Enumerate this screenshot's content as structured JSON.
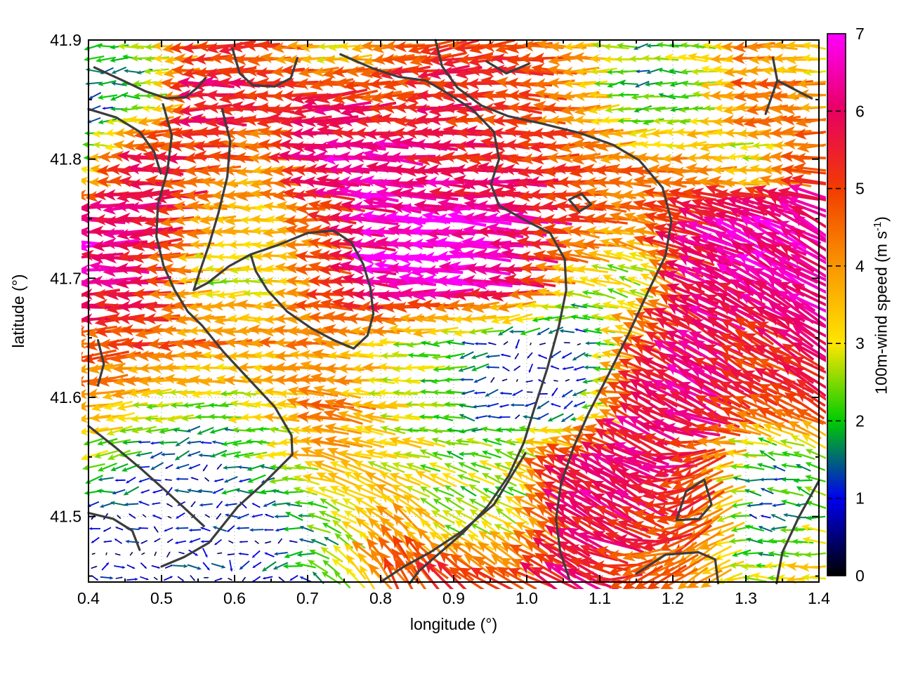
{
  "chart_data": {
    "type": "quiver",
    "xlabel": "longitude (°)",
    "ylabel": "latitude (°)",
    "xlim": [
      0.4,
      1.4
    ],
    "ylim": [
      41.445,
      41.9
    ],
    "xticks": [
      0.4,
      0.5,
      0.6,
      0.7,
      0.8,
      0.9,
      1.0,
      1.1,
      1.2,
      1.3,
      1.4
    ],
    "xticks_minor": [
      0.45,
      0.55,
      0.65,
      0.75,
      0.85,
      0.95,
      1.05,
      1.15,
      1.25,
      1.35
    ],
    "yticks": [
      41.5,
      41.6,
      41.7,
      41.8,
      41.9
    ],
    "yticks_minor": [
      41.45,
      41.55,
      41.65,
      41.75,
      41.85
    ],
    "grid": "dotted",
    "grid_color": "#9a9a9a",
    "frame_color": "#000000",
    "contour_color": "#3c3c3c",
    "colorbar": {
      "label_text": "100m-wind speed (m s",
      "label_sup": "-1",
      "label_close": ")",
      "min": 0,
      "max": 7,
      "ticks": [
        0,
        1,
        2,
        3,
        4,
        5,
        6,
        7
      ],
      "palette_stops": [
        [
          0,
          "#000000"
        ],
        [
          1,
          "#0000f0"
        ],
        [
          2,
          "#00cc00"
        ],
        [
          3,
          "#ffe600"
        ],
        [
          4,
          "#fa9600"
        ],
        [
          5,
          "#f23c00"
        ],
        [
          6,
          "#e80060"
        ],
        [
          7,
          "#ff00ff"
        ]
      ]
    },
    "field": {
      "comment": "coarse control grid of the wind field; cols span lon 0.4-1.4, rows span lat 41.9 (top) to 41.445 (bottom); dir in degrees CCW from east (180 = blowing toward west)",
      "ncols": 13,
      "nrows": 10,
      "arrow_spacing_deg": {
        "lon": 0.01704,
        "lat": 0.01039
      },
      "speed": [
        [
          2.0,
          2.5,
          5.0,
          5.0,
          2.2,
          4.6,
          5.2,
          5.4,
          4.0,
          2.0,
          2.6,
          4.0,
          3.0
        ],
        [
          1.0,
          2.2,
          6.0,
          5.4,
          6.0,
          5.0,
          5.5,
          5.0,
          4.2,
          1.6,
          2.2,
          4.8,
          4.0
        ],
        [
          2.2,
          6.0,
          5.0,
          4.0,
          6.5,
          6.5,
          5.5,
          5.5,
          5.0,
          4.2,
          4.0,
          2.6,
          5.0
        ],
        [
          6.5,
          5.8,
          4.0,
          3.2,
          5.0,
          6.8,
          6.8,
          6.5,
          5.2,
          4.0,
          6.0,
          6.5,
          6.5
        ],
        [
          6.5,
          6.0,
          2.6,
          3.0,
          5.0,
          7.0,
          7.0,
          6.5,
          3.2,
          2.2,
          6.2,
          6.5,
          6.5
        ],
        [
          4.6,
          5.0,
          4.2,
          4.0,
          4.2,
          3.0,
          2.0,
          0.8,
          0.7,
          4.5,
          6.2,
          5.2,
          6.0
        ],
        [
          4.2,
          3.0,
          2.5,
          3.2,
          4.5,
          3.0,
          2.0,
          0.6,
          0.7,
          5.5,
          6.5,
          5.0,
          5.5
        ],
        [
          2.5,
          1.2,
          1.0,
          2.2,
          4.0,
          3.0,
          2.5,
          2.8,
          6.0,
          6.5,
          5.0,
          1.5,
          2.0
        ],
        [
          0.8,
          0.8,
          1.0,
          1.0,
          2.2,
          4.0,
          2.5,
          2.8,
          6.0,
          5.5,
          4.8,
          1.2,
          2.5
        ],
        [
          0.6,
          0.7,
          0.8,
          1.0,
          2.5,
          5.0,
          5.5,
          5.0,
          6.0,
          4.5,
          4.0,
          2.5,
          3.5
        ]
      ],
      "dir": [
        [
          180,
          180,
          185,
          180,
          180,
          185,
          190,
          185,
          180,
          180,
          170,
          180,
          175
        ],
        [
          200,
          185,
          180,
          180,
          185,
          185,
          180,
          175,
          180,
          190,
          180,
          185,
          180
        ],
        [
          175,
          180,
          180,
          180,
          180,
          175,
          180,
          180,
          185,
          180,
          185,
          180,
          185
        ],
        [
          180,
          185,
          180,
          180,
          175,
          175,
          178,
          180,
          175,
          170,
          160,
          155,
          150
        ],
        [
          180,
          180,
          185,
          180,
          175,
          178,
          180,
          178,
          170,
          160,
          155,
          150,
          150
        ],
        [
          185,
          185,
          180,
          180,
          178,
          180,
          185,
          200,
          190,
          158,
          152,
          150,
          150
        ],
        [
          190,
          185,
          180,
          175,
          170,
          175,
          180,
          200,
          210,
          150,
          150,
          155,
          150
        ],
        [
          195,
          200,
          190,
          185,
          160,
          165,
          160,
          155,
          150,
          150,
          210,
          170,
          160
        ],
        [
          190,
          170,
          180,
          190,
          150,
          135,
          150,
          150,
          150,
          150,
          215,
          180,
          170
        ],
        [
          10,
          0,
          350,
          200,
          140,
          120,
          140,
          150,
          150,
          210,
          220,
          170,
          185
        ]
      ]
    },
    "contours": [
      [
        [
          0.408,
          41.877
        ],
        [
          0.447,
          41.866
        ],
        [
          0.478,
          41.857
        ],
        [
          0.507,
          41.851
        ],
        [
          0.533,
          41.852
        ],
        [
          0.549,
          41.86
        ],
        [
          0.56,
          41.868
        ]
      ],
      [
        [
          0.4,
          41.842
        ],
        [
          0.438,
          41.835
        ],
        [
          0.47,
          41.823
        ],
        [
          0.49,
          41.806
        ],
        [
          0.499,
          41.788
        ]
      ],
      [
        [
          0.502,
          41.846
        ],
        [
          0.514,
          41.82
        ],
        [
          0.508,
          41.79
        ],
        [
          0.495,
          41.762
        ],
        [
          0.493,
          41.735
        ],
        [
          0.503,
          41.71
        ],
        [
          0.518,
          41.69
        ],
        [
          0.536,
          41.672
        ],
        [
          0.556,
          41.66
        ],
        [
          0.585,
          41.638
        ],
        [
          0.62,
          41.615
        ],
        [
          0.655,
          41.592
        ],
        [
          0.678,
          41.568
        ],
        [
          0.679,
          41.552
        ],
        [
          0.64,
          41.528
        ],
        [
          0.604,
          41.508
        ],
        [
          0.565,
          41.478
        ],
        [
          0.531,
          41.466
        ],
        [
          0.5,
          41.458
        ]
      ],
      [
        [
          0.583,
          41.842
        ],
        [
          0.594,
          41.815
        ],
        [
          0.59,
          41.785
        ],
        [
          0.578,
          41.755
        ],
        [
          0.565,
          41.728
        ],
        [
          0.552,
          41.705
        ],
        [
          0.544,
          41.69
        ],
        [
          0.563,
          41.696
        ],
        [
          0.592,
          41.71
        ],
        [
          0.622,
          41.72
        ]
      ],
      [
        [
          0.622,
          41.72
        ],
        [
          0.66,
          41.728
        ],
        [
          0.7,
          41.738
        ],
        [
          0.736,
          41.74
        ],
        [
          0.76,
          41.73
        ],
        [
          0.776,
          41.712
        ],
        [
          0.786,
          41.692
        ],
        [
          0.79,
          41.67
        ],
        [
          0.782,
          41.652
        ],
        [
          0.763,
          41.641
        ],
        [
          0.736,
          41.648
        ],
        [
          0.705,
          41.658
        ],
        [
          0.672,
          41.672
        ],
        [
          0.645,
          41.69
        ],
        [
          0.629,
          41.706
        ],
        [
          0.622,
          41.72
        ]
      ],
      [
        [
          0.597,
          41.893
        ],
        [
          0.607,
          41.872
        ],
        [
          0.625,
          41.862
        ],
        [
          0.655,
          41.861
        ],
        [
          0.677,
          41.868
        ],
        [
          0.686,
          41.885
        ]
      ],
      [
        [
          0.945,
          41.882
        ],
        [
          0.972,
          41.872
        ],
        [
          1.003,
          41.88
        ]
      ],
      [
        [
          0.745,
          41.888
        ],
        [
          0.79,
          41.876
        ],
        [
          0.825,
          41.869
        ],
        [
          0.862,
          41.866
        ],
        [
          0.887,
          41.857
        ],
        [
          0.925,
          41.842
        ],
        [
          0.955,
          41.823
        ],
        [
          0.962,
          41.8
        ],
        [
          0.951,
          41.779
        ],
        [
          0.962,
          41.761
        ],
        [
          1.0,
          41.748
        ],
        [
          1.032,
          41.738
        ],
        [
          1.052,
          41.716
        ],
        [
          1.054,
          41.69
        ],
        [
          1.044,
          41.66
        ],
        [
          1.028,
          41.624
        ],
        [
          1.01,
          41.59
        ],
        [
          0.996,
          41.562
        ],
        [
          0.975,
          41.534
        ],
        [
          0.947,
          41.509
        ],
        [
          0.914,
          41.487
        ],
        [
          0.88,
          41.469
        ],
        [
          0.852,
          41.454
        ],
        [
          0.84,
          41.444
        ]
      ],
      [
        [
          0.875,
          41.9
        ],
        [
          0.884,
          41.878
        ],
        [
          0.905,
          41.86
        ],
        [
          0.938,
          41.845
        ],
        [
          0.975,
          41.836
        ],
        [
          1.02,
          41.83
        ],
        [
          1.072,
          41.822
        ],
        [
          1.118,
          41.812
        ],
        [
          1.154,
          41.799
        ],
        [
          1.186,
          41.776
        ],
        [
          1.198,
          41.748
        ],
        [
          1.19,
          41.719
        ],
        [
          1.167,
          41.69
        ],
        [
          1.14,
          41.654
        ],
        [
          1.111,
          41.618
        ],
        [
          1.084,
          41.586
        ],
        [
          1.064,
          41.558
        ],
        [
          1.047,
          41.528
        ],
        [
          1.04,
          41.498
        ],
        [
          1.046,
          41.47
        ],
        [
          1.058,
          41.448
        ]
      ],
      [
        [
          1.337,
          41.885
        ],
        [
          1.343,
          41.866
        ],
        [
          1.39,
          41.851
        ]
      ],
      [
        [
          1.343,
          41.866
        ],
        [
          1.327,
          41.838
        ]
      ],
      [
        [
          1.218,
          41.521
        ],
        [
          1.243,
          41.531
        ],
        [
          1.253,
          41.51
        ],
        [
          1.236,
          41.498
        ],
        [
          1.205,
          41.497
        ],
        [
          1.218,
          41.521
        ]
      ],
      [
        [
          1.15,
          41.452
        ],
        [
          1.19,
          41.468
        ],
        [
          1.235,
          41.47
        ],
        [
          1.258,
          41.464
        ],
        [
          1.262,
          41.444
        ]
      ],
      [
        [
          1.4,
          41.53
        ],
        [
          1.372,
          41.499
        ],
        [
          1.35,
          41.47
        ],
        [
          1.342,
          41.444
        ]
      ],
      [
        [
          0.998,
          41.553
        ],
        [
          0.955,
          41.51
        ],
        [
          0.91,
          41.487
        ],
        [
          0.868,
          41.47
        ],
        [
          0.832,
          41.458
        ],
        [
          0.8,
          41.445
        ]
      ],
      [
        [
          0.4,
          41.576
        ],
        [
          0.437,
          41.558
        ],
        [
          0.472,
          41.54
        ],
        [
          0.505,
          41.522
        ],
        [
          0.535,
          41.505
        ],
        [
          0.558,
          41.492
        ]
      ],
      [
        [
          0.4,
          41.503
        ],
        [
          0.434,
          41.498
        ],
        [
          0.46,
          41.488
        ],
        [
          0.47,
          41.472
        ]
      ],
      [
        [
          0.413,
          41.648
        ],
        [
          0.421,
          41.628
        ],
        [
          0.413,
          41.61
        ]
      ],
      [
        [
          1.058,
          41.766
        ],
        [
          1.075,
          41.771
        ],
        [
          1.088,
          41.762
        ],
        [
          1.072,
          41.756
        ],
        [
          1.058,
          41.766
        ]
      ]
    ]
  }
}
